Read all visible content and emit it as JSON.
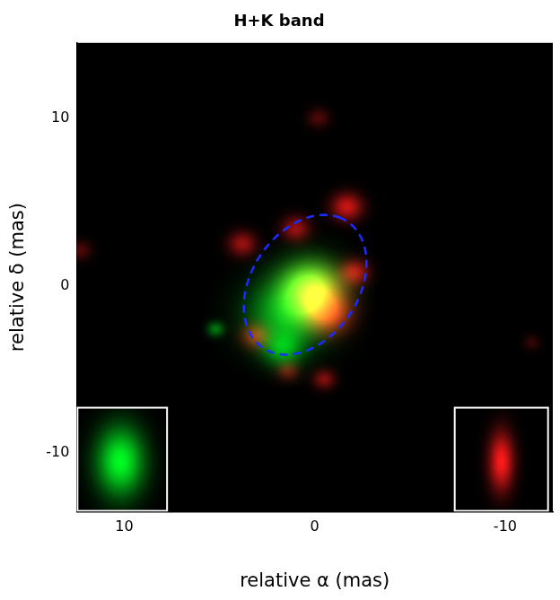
{
  "chart_data": {
    "type": "image",
    "title": "H+K band",
    "x_label": "relative α (mas)",
    "y_label": "relative δ (mas)",
    "xlim": [
      12.5,
      -12.5
    ],
    "ylim": [
      -13.5,
      14.5
    ],
    "xticks": [
      10,
      0,
      -10
    ],
    "yticks": [
      -10,
      0,
      10
    ],
    "grid": false,
    "components": [
      {
        "color": "#00ff22",
        "sources": [
          {
            "x": 1.4,
            "y": -1.7,
            "sigma": 1.4,
            "intensity": 0.75
          },
          {
            "x": 0.2,
            "y": 0.0,
            "sigma": 1.1,
            "intensity": 0.9
          },
          {
            "x": 1.7,
            "y": -3.8,
            "sigma": 0.7,
            "intensity": 0.55
          },
          {
            "x": 5.2,
            "y": -2.6,
            "sigma": 0.3,
            "intensity": 0.45
          }
        ]
      },
      {
        "color": "#ff1a1a",
        "sources": [
          {
            "x": 0.0,
            "y": -0.5,
            "sigma": 1.0,
            "intensity": 1.0
          },
          {
            "x": -0.7,
            "y": -1.7,
            "sigma": 0.8,
            "intensity": 0.8
          },
          {
            "x": -1.7,
            "y": 4.7,
            "sigma": 0.55,
            "intensity": 0.8
          },
          {
            "x": -2.1,
            "y": 0.8,
            "sigma": 0.5,
            "intensity": 0.7
          },
          {
            "x": 3.8,
            "y": 2.5,
            "sigma": 0.5,
            "intensity": 0.6
          },
          {
            "x": 1.0,
            "y": 3.4,
            "sigma": 0.5,
            "intensity": 0.6
          },
          {
            "x": 3.1,
            "y": -3.0,
            "sigma": 0.5,
            "intensity": 0.6
          },
          {
            "x": -0.5,
            "y": -5.6,
            "sigma": 0.4,
            "intensity": 0.5
          },
          {
            "x": 1.4,
            "y": -5.1,
            "sigma": 0.4,
            "intensity": 0.4
          },
          {
            "x": -0.2,
            "y": 10.0,
            "sigma": 0.4,
            "intensity": 0.3
          },
          {
            "x": 12.3,
            "y": 2.1,
            "sigma": 0.4,
            "intensity": 0.3
          },
          {
            "x": -11.4,
            "y": -3.4,
            "sigma": 0.3,
            "intensity": 0.2
          }
        ]
      }
    ],
    "ellipse": {
      "color": "#1a2cff",
      "line_style": "dashed",
      "center": [
        0.5,
        0.05
      ],
      "semi_major": 4.4,
      "semi_minor": 2.9,
      "position_angle": -25
    },
    "beams": [
      {
        "color": "#00ff22",
        "x": 10.2,
        "y": -10.5,
        "sigma_x": 0.85,
        "sigma_y": 1.4
      },
      {
        "color": "#ff1a1a",
        "x": -9.8,
        "y": -10.5,
        "sigma_x": 0.45,
        "sigma_y": 1.2
      }
    ]
  }
}
